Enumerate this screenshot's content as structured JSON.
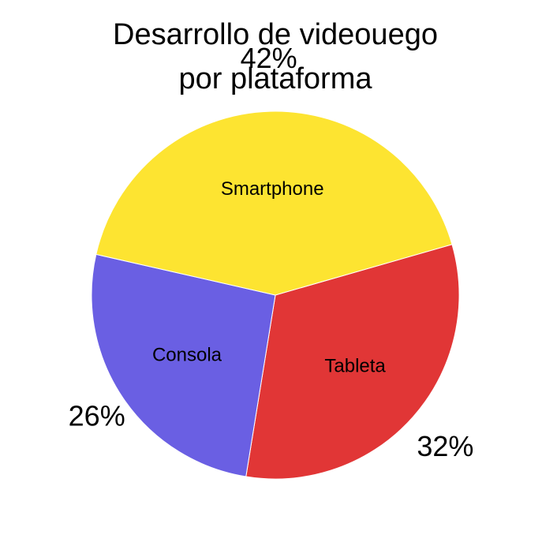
{
  "chart_data": {
    "type": "pie",
    "title_lines": [
      "Desarrollo de videouego",
      "por plataforma"
    ],
    "slices": [
      {
        "label": "Tableta",
        "value": 32,
        "percent_label": "32%",
        "color": "#E13636"
      },
      {
        "label": "Consola",
        "value": 26,
        "percent_label": "26%",
        "color": "#6A5FE3"
      },
      {
        "label": "Smartphone",
        "value": 42,
        "percent_label": "42%",
        "color": "#FDE431"
      }
    ],
    "legend": "none",
    "slice_border_color": "#ffffff"
  }
}
